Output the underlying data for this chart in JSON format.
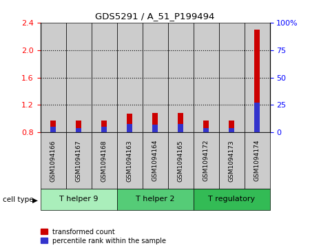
{
  "title": "GDS5291 / A_51_P199494",
  "samples": [
    "GSM1094166",
    "GSM1094167",
    "GSM1094168",
    "GSM1094163",
    "GSM1094164",
    "GSM1094165",
    "GSM1094172",
    "GSM1094173",
    "GSM1094174"
  ],
  "red_values": [
    0.97,
    0.97,
    0.97,
    1.07,
    1.08,
    1.08,
    0.97,
    0.97,
    2.3
  ],
  "blue_percentile": [
    5,
    4,
    5,
    8,
    7,
    8,
    4,
    4,
    27
  ],
  "ylim_left": [
    0.8,
    2.4
  ],
  "ylim_right": [
    0,
    100
  ],
  "yticks_left": [
    0.8,
    1.2,
    1.6,
    2.0,
    2.4
  ],
  "yticks_right": [
    0,
    25,
    50,
    75,
    100
  ],
  "ytick_labels_right": [
    "0",
    "25",
    "50",
    "75",
    "100%"
  ],
  "grid_lines": [
    1.2,
    1.6,
    2.0
  ],
  "groups": [
    {
      "label": "T helper 9",
      "indices": [
        0,
        1,
        2
      ],
      "color": "#aaeebb"
    },
    {
      "label": "T helper 2",
      "indices": [
        3,
        4,
        5
      ],
      "color": "#55cc77"
    },
    {
      "label": "T regulatory",
      "indices": [
        6,
        7,
        8
      ],
      "color": "#33bb55"
    }
  ],
  "red_color": "#cc0000",
  "blue_color": "#3333cc",
  "bg_color": "#ffffff",
  "bar_bg_color": "#cccccc",
  "legend_red": "transformed count",
  "legend_blue": "percentile rank within the sample",
  "cell_type_label": "cell type"
}
